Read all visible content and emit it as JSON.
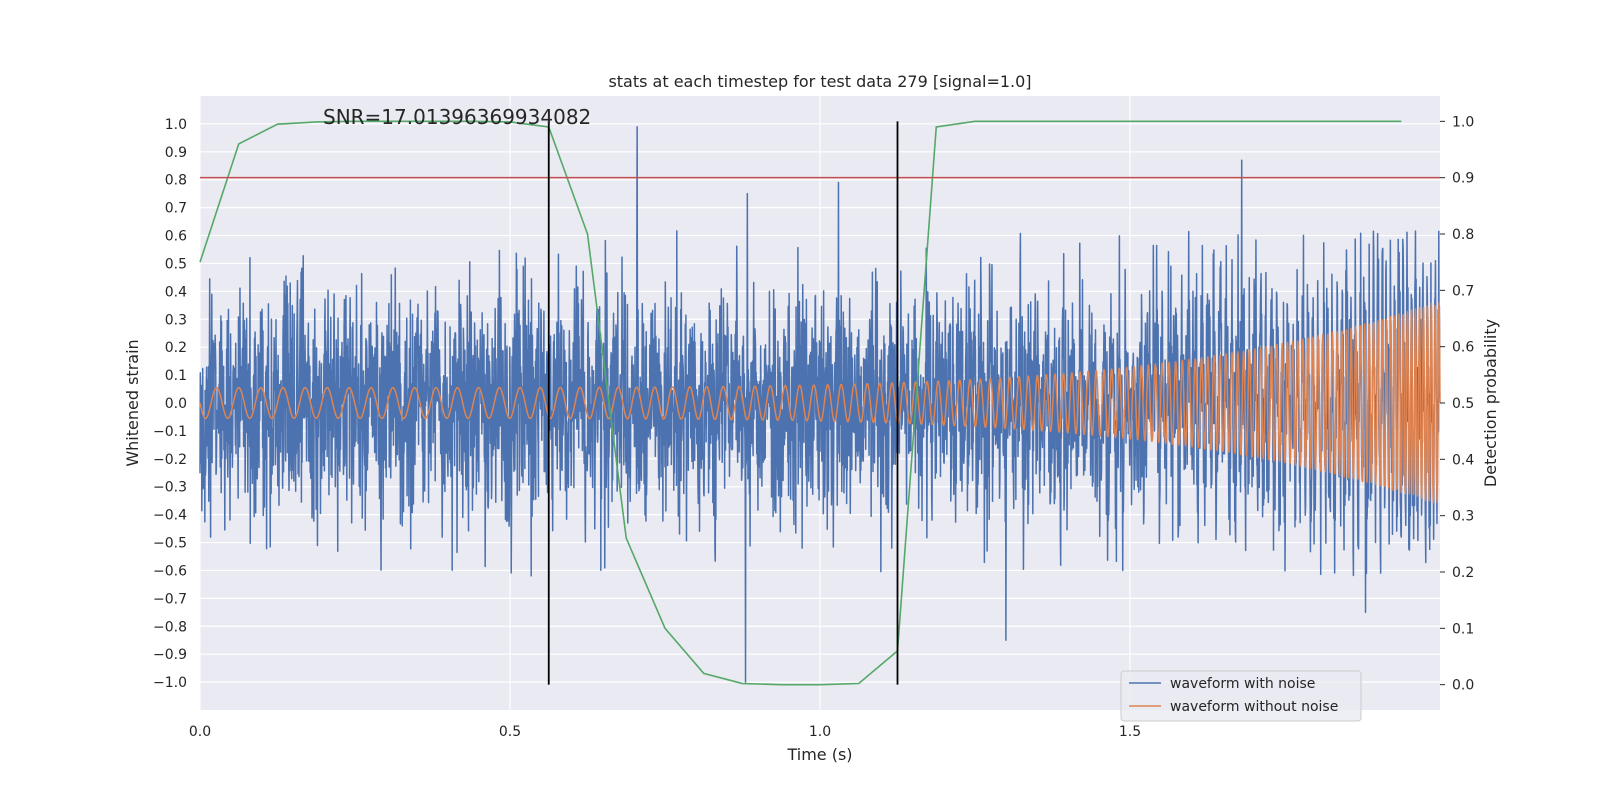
{
  "chart_data": {
    "type": "line",
    "title": "stats at each timestep for test data 279 [signal=1.0]",
    "annotation": "SNR=17.01396369934082",
    "xlabel": "Time (s)",
    "ylabel": "Whitened strain",
    "y2label": "Detection probability",
    "xlim": [
      0.0,
      2.0
    ],
    "ylim": [
      -1.1,
      1.1
    ],
    "y2lim": [
      -0.045,
      1.045
    ],
    "xticks": [
      0.0,
      0.5,
      1.0,
      1.5
    ],
    "xtick_labels": [
      "0.0",
      "0.5",
      "1.0",
      "1.5"
    ],
    "yticks": [
      -1.0,
      -0.9,
      -0.8,
      -0.7,
      -0.6,
      -0.5,
      -0.4,
      -0.3,
      -0.2,
      -0.1,
      0.0,
      0.1,
      0.2,
      0.3,
      0.4,
      0.5,
      0.6,
      0.7,
      0.8,
      0.9,
      1.0
    ],
    "ytick_labels": [
      "−1.0",
      "−0.9",
      "−0.8",
      "−0.7",
      "−0.6",
      "−0.5",
      "−0.4",
      "−0.3",
      "−0.2",
      "−0.1",
      "0.0",
      "0.1",
      "0.2",
      "0.3",
      "0.4",
      "0.5",
      "0.6",
      "0.7",
      "0.8",
      "0.9",
      "1.0"
    ],
    "y2ticks": [
      0.0,
      0.1,
      0.2,
      0.3,
      0.4,
      0.5,
      0.6,
      0.7,
      0.8,
      0.9,
      1.0
    ],
    "y2tick_labels": [
      "0.0",
      "0.1",
      "0.2",
      "0.3",
      "0.4",
      "0.5",
      "0.6",
      "0.7",
      "0.8",
      "0.9",
      "1.0"
    ],
    "grid": true,
    "legend_position": "bottom-right",
    "colors": {
      "noisy": "#4c72b0",
      "clean": "#dd8452",
      "probability": "#55a868",
      "threshold": "#c44e52",
      "markers": "#000000",
      "background": "#eaeaf2",
      "grid": "#ffffff"
    },
    "threshold_y2": 0.9,
    "vertical_markers": [
      {
        "x": 0.5625,
        "y2_range": [
          0.0,
          1.0
        ]
      },
      {
        "x": 1.125,
        "y2_range": [
          0.0,
          1.0
        ]
      }
    ],
    "series": [
      {
        "name": "waveform with noise",
        "axis": "left",
        "kind": "noise",
        "sample_rate_hz": 2048,
        "std": 0.2,
        "signal_amplitude_scale": 1.0,
        "spikes": [
          {
            "x": 0.705,
            "y": 0.99
          },
          {
            "x": 0.88,
            "y": -1.0
          },
          {
            "x": 0.883,
            "y": 0.75
          },
          {
            "x": 1.03,
            "y": 0.79
          },
          {
            "x": 1.3,
            "y": -0.85
          },
          {
            "x": 1.68,
            "y": 0.87
          },
          {
            "x": 1.88,
            "y": -0.75
          }
        ]
      },
      {
        "name": "waveform without noise",
        "axis": "left",
        "kind": "chirp",
        "amplitude_start": 0.055,
        "amplitude_end": 0.36,
        "frequency_start_hz": 28,
        "frequency_end_hz": 160,
        "t_merger": 1.99
      },
      {
        "name": "",
        "axis": "right",
        "kind": "probability",
        "x": [
          0.0,
          0.0625,
          0.125,
          0.1875,
          0.25,
          0.3125,
          0.375,
          0.4375,
          0.5,
          0.5625,
          0.625,
          0.6875,
          0.75,
          0.8125,
          0.875,
          0.9375,
          1.0,
          1.0625,
          1.125,
          1.1875,
          1.25,
          1.3125,
          1.375,
          1.4375,
          1.5,
          1.5625,
          1.625,
          1.6875,
          1.75,
          1.8125,
          1.875,
          1.9375
        ],
        "values": [
          0.75,
          0.96,
          0.995,
          0.999,
          1.0,
          1.0,
          1.0,
          1.0,
          0.999,
          0.99,
          0.8,
          0.26,
          0.1,
          0.02,
          0.002,
          0.0,
          0.0,
          0.002,
          0.06,
          0.99,
          1.0,
          1.0,
          1.0,
          1.0,
          1.0,
          1.0,
          1.0,
          1.0,
          1.0,
          1.0,
          1.0,
          1.0
        ]
      }
    ]
  }
}
